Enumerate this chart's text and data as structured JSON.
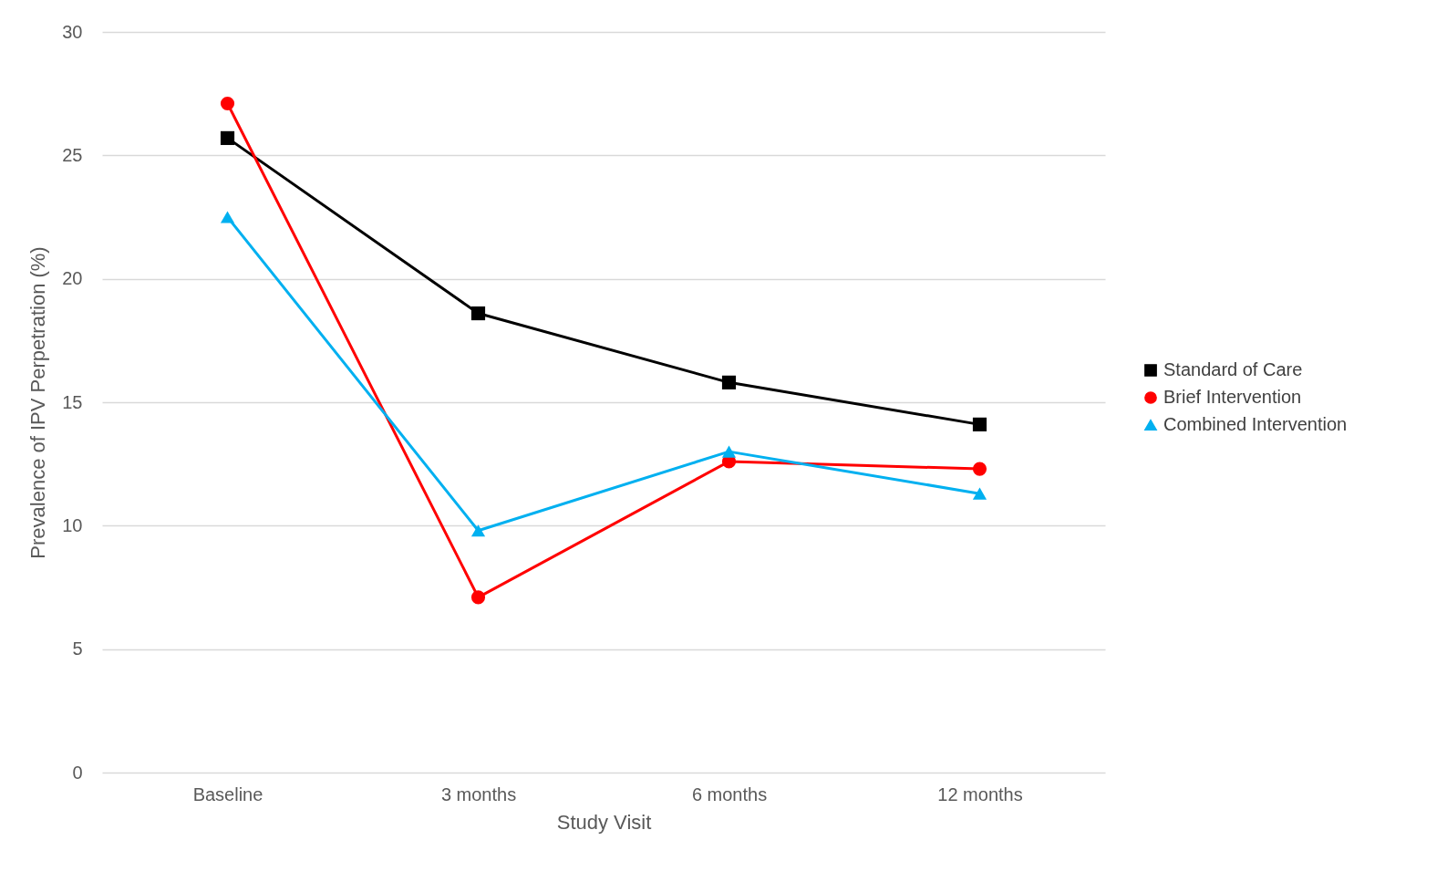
{
  "chart_data": {
    "type": "line",
    "xlabel": "Study Visit",
    "ylabel": "Prevalence of IPV Perpetration (%)",
    "categories": [
      "Baseline",
      "3 months",
      "6 months",
      "12 months"
    ],
    "series": [
      {
        "name": "Standard of Care",
        "color": "#000000",
        "marker": "square",
        "values": [
          25.7,
          18.6,
          15.8,
          14.1
        ]
      },
      {
        "name": "Brief Intervention",
        "color": "#ff0000",
        "marker": "circle",
        "values": [
          27.1,
          7.1,
          12.6,
          12.3
        ]
      },
      {
        "name": "Combined Intervention",
        "color": "#00b0f0",
        "marker": "triangle",
        "values": [
          22.5,
          9.8,
          13.0,
          11.3
        ]
      }
    ],
    "ylim": [
      0,
      30
    ],
    "yticks": [
      0,
      5,
      10,
      15,
      20,
      25,
      30
    ],
    "grid": "y",
    "legend": "right",
    "line_style": "solid"
  }
}
